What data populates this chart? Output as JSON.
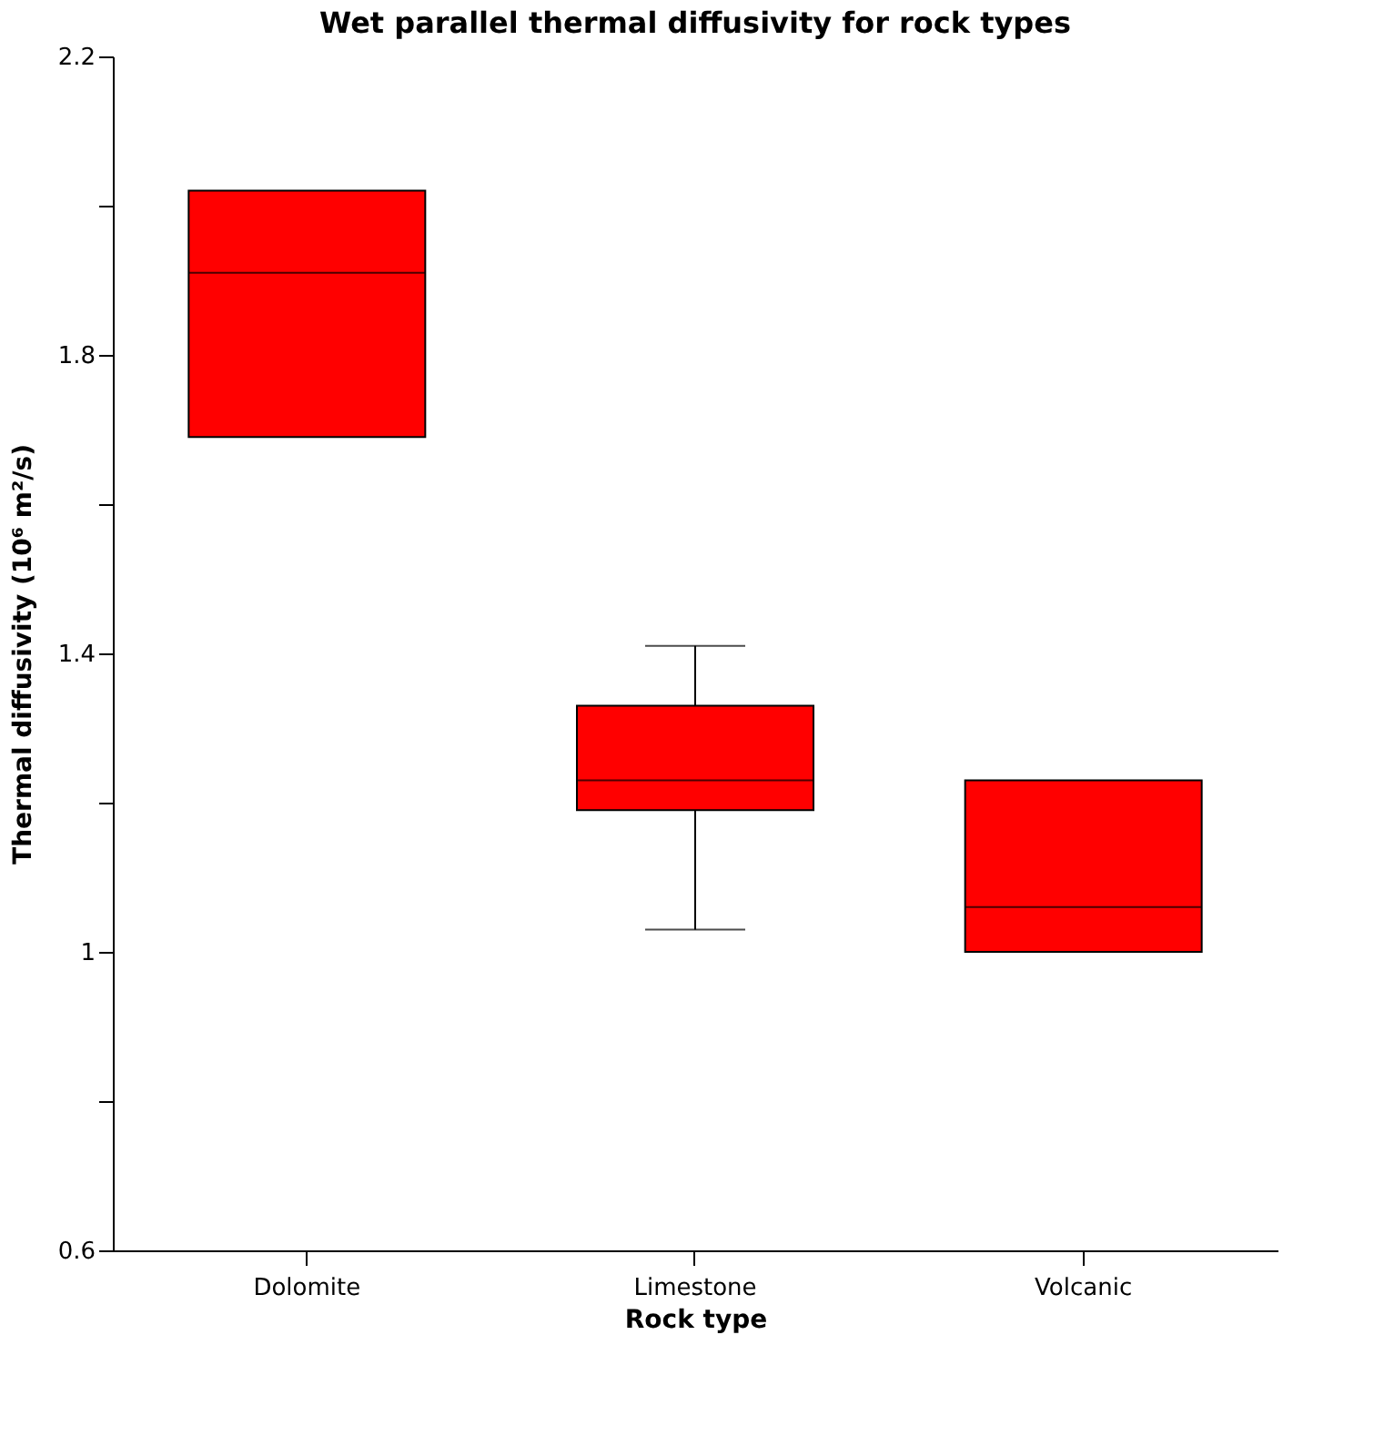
{
  "chart_data": {
    "type": "box",
    "title": "Wet parallel thermal diffusivity for rock types",
    "xlabel": "Rock type",
    "ylabel": "Thermal diffusivity (10⁶ m²/s)",
    "categories": [
      "Dolomite",
      "Limestone",
      "Volcanic"
    ],
    "boxes": [
      {
        "low": 1.69,
        "q1": 1.69,
        "median": 1.91,
        "q3": 2.02,
        "high": 2.02
      },
      {
        "low": 1.03,
        "q1": 1.19,
        "median": 1.23,
        "q3": 1.33,
        "high": 1.41
      },
      {
        "low": 1.0,
        "q1": 1.0,
        "median": 1.06,
        "q3": 1.23,
        "high": 1.23
      }
    ],
    "color": "#ff0000",
    "ylim": [
      0.6,
      2.2
    ],
    "yticks": [
      0.6,
      {
        "value": 0.8,
        "label": null
      },
      1,
      {
        "value": 1.2,
        "label": null
      },
      1.4,
      {
        "value": 1.6,
        "label": null
      },
      1.8,
      {
        "value": 2.0,
        "label": null
      },
      2.2
    ],
    "grid": false
  }
}
